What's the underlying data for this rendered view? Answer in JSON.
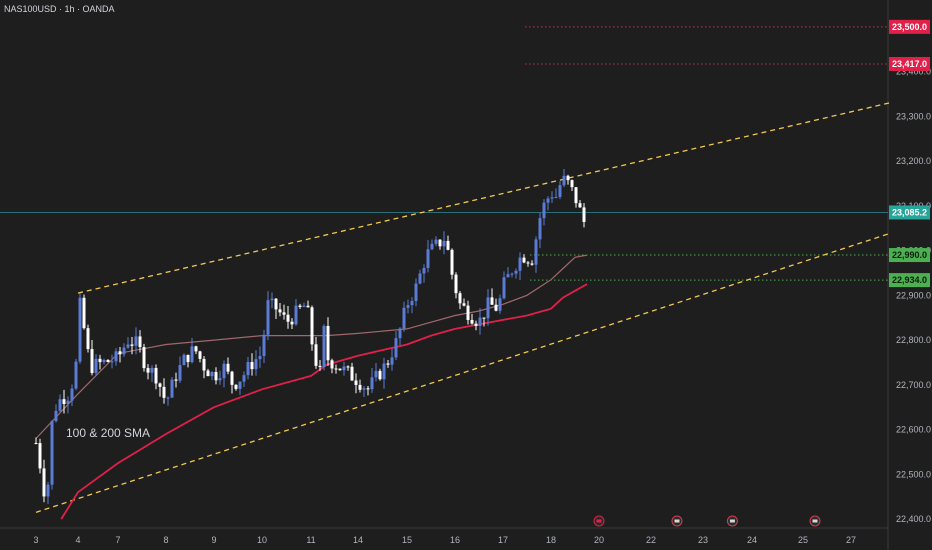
{
  "header": {
    "symbol_title": "NAS100USD · 1h · OANDA"
  },
  "colors": {
    "background": "#1e1e1e",
    "candle_up": "#2962ff",
    "candle_down": "#ffffff",
    "candle_up_fill": "#5b7cd6",
    "sma100": "#a0686b",
    "sma200": "#e1204a",
    "channel": "#f2c94c",
    "red_level": "#e1204a",
    "green_level": "#4caf50",
    "price_line": "#2a6f7a",
    "price_tag": "#26a69a"
  },
  "chart_data": {
    "type": "candlestick",
    "title": "NAS100USD · 1h · OANDA",
    "y_range": [
      22380,
      23560
    ],
    "y_ticks": [
      22400,
      22500,
      22600,
      22700,
      22800,
      22900,
      23000,
      23100,
      23200,
      23300,
      23400
    ],
    "y_tick_labels": [
      "22,400.0",
      "22,500.0",
      "22,600.0",
      "22,700.0",
      "22,800.0",
      "22,900.0",
      "23,000.0",
      "23,100.0",
      "23,200.0",
      "23,300.0",
      "23,400.0"
    ],
    "x_ticks": [
      {
        "label": "3",
        "day": 3
      },
      {
        "label": "4",
        "day": 4
      },
      {
        "label": "7",
        "day": 7
      },
      {
        "label": "8",
        "day": 8
      },
      {
        "label": "9",
        "day": 9
      },
      {
        "label": "10",
        "day": 10
      },
      {
        "label": "11",
        "day": 11
      },
      {
        "label": "14",
        "day": 14
      },
      {
        "label": "15",
        "day": 15
      },
      {
        "label": "16",
        "day": 16
      },
      {
        "label": "17",
        "day": 17
      },
      {
        "label": "18",
        "day": 18
      },
      {
        "label": "20",
        "day": 20
      },
      {
        "label": "22",
        "day": 22
      },
      {
        "label": "23",
        "day": 23
      },
      {
        "label": "24",
        "day": 24
      },
      {
        "label": "25",
        "day": 25
      },
      {
        "label": "27",
        "day": 27
      }
    ],
    "current_price": {
      "value": 23085.2,
      "label": "23,085.2"
    },
    "levels": [
      {
        "value": 23500.0,
        "label": "23,500.0",
        "color": "red"
      },
      {
        "value": 23417.0,
        "label": "23,417.0",
        "color": "red"
      },
      {
        "value": 22990.0,
        "label": "22,990.0",
        "color": "green"
      },
      {
        "value": 22934.0,
        "label": "22,934.0",
        "color": "green"
      }
    ],
    "annotation": "100 & 200 SMA",
    "channel": {
      "upper": [
        [
          4,
          22905
        ],
        [
          27,
          23310
        ]
      ],
      "lower": [
        [
          3,
          22415
        ],
        [
          27,
          23010
        ]
      ]
    },
    "close_path": [
      [
        3.0,
        22570
      ],
      [
        3.1,
        22520
      ],
      [
        3.25,
        22430
      ],
      [
        3.4,
        22640
      ],
      [
        3.6,
        22670
      ],
      [
        3.8,
        22680
      ],
      [
        3.95,
        22740
      ],
      [
        4.05,
        22895
      ],
      [
        4.3,
        22850
      ],
      [
        4.6,
        22800
      ],
      [
        4.9,
        22740
      ],
      [
        7.0,
        22760
      ],
      [
        7.2,
        22800
      ],
      [
        7.4,
        22790
      ],
      [
        7.6,
        22740
      ],
      [
        7.8,
        22720
      ],
      [
        8.0,
        22660
      ],
      [
        8.2,
        22720
      ],
      [
        8.4,
        22760
      ],
      [
        8.6,
        22780
      ],
      [
        8.8,
        22740
      ],
      [
        9.0,
        22720
      ],
      [
        9.2,
        22740
      ],
      [
        9.4,
        22700
      ],
      [
        9.6,
        22720
      ],
      [
        9.8,
        22750
      ],
      [
        10.0,
        22770
      ],
      [
        10.1,
        22880
      ],
      [
        10.3,
        22870
      ],
      [
        10.5,
        22840
      ],
      [
        10.7,
        22860
      ],
      [
        10.9,
        22880
      ],
      [
        11.0,
        22820
      ],
      [
        11.2,
        22740
      ],
      [
        11.4,
        22760
      ],
      [
        11.6,
        22720
      ],
      [
        11.8,
        22830
      ],
      [
        12.0,
        22760
      ],
      [
        14.0,
        22710
      ],
      [
        14.2,
        22690
      ],
      [
        14.4,
        22720
      ],
      [
        14.6,
        22750
      ],
      [
        14.8,
        22800
      ],
      [
        15.0,
        22880
      ],
      [
        15.2,
        22920
      ],
      [
        15.4,
        22990
      ],
      [
        15.6,
        23010
      ],
      [
        15.8,
        23030
      ],
      [
        15.95,
        22940
      ],
      [
        16.1,
        22880
      ],
      [
        16.3,
        22860
      ],
      [
        16.5,
        22840
      ],
      [
        16.7,
        22880
      ],
      [
        16.9,
        22870
      ],
      [
        17.0,
        22920
      ],
      [
        17.2,
        22960
      ],
      [
        17.4,
        22990
      ],
      [
        17.6,
        22980
      ],
      [
        17.8,
        23090
      ],
      [
        18.0,
        23130
      ],
      [
        18.2,
        23120
      ],
      [
        18.4,
        23150
      ],
      [
        18.6,
        23160
      ],
      [
        18.8,
        23140
      ],
      [
        19.0,
        23120
      ],
      [
        19.2,
        23090
      ],
      [
        19.35,
        23060
      ],
      [
        19.5,
        23085
      ]
    ],
    "sma100": [
      [
        3.0,
        22580
      ],
      [
        4.0,
        22680
      ],
      [
        7.0,
        22770
      ],
      [
        8.0,
        22790
      ],
      [
        9.0,
        22800
      ],
      [
        10.0,
        22810
      ],
      [
        11.0,
        22810
      ],
      [
        12.0,
        22810
      ],
      [
        14.0,
        22815
      ],
      [
        15.0,
        22825
      ],
      [
        15.5,
        22840
      ],
      [
        16.0,
        22855
      ],
      [
        16.5,
        22865
      ],
      [
        17.0,
        22880
      ],
      [
        17.5,
        22900
      ],
      [
        18.0,
        22935
      ],
      [
        18.5,
        22960
      ],
      [
        19.0,
        22985
      ],
      [
        19.5,
        22990
      ]
    ],
    "sma200": [
      [
        3.6,
        22400
      ],
      [
        4.0,
        22460
      ],
      [
        7.0,
        22525
      ],
      [
        8.0,
        22590
      ],
      [
        9.0,
        22650
      ],
      [
        10.0,
        22690
      ],
      [
        11.0,
        22720
      ],
      [
        12.0,
        22745
      ],
      [
        14.0,
        22765
      ],
      [
        15.0,
        22790
      ],
      [
        15.5,
        22810
      ],
      [
        16.0,
        22825
      ],
      [
        16.5,
        22835
      ],
      [
        17.0,
        22845
      ],
      [
        17.5,
        22855
      ],
      [
        18.0,
        22870
      ],
      [
        18.5,
        22895
      ],
      [
        19.0,
        22910
      ],
      [
        19.5,
        22925
      ]
    ],
    "event_icons": [
      20,
      22.5,
      23.6,
      25.5
    ]
  }
}
